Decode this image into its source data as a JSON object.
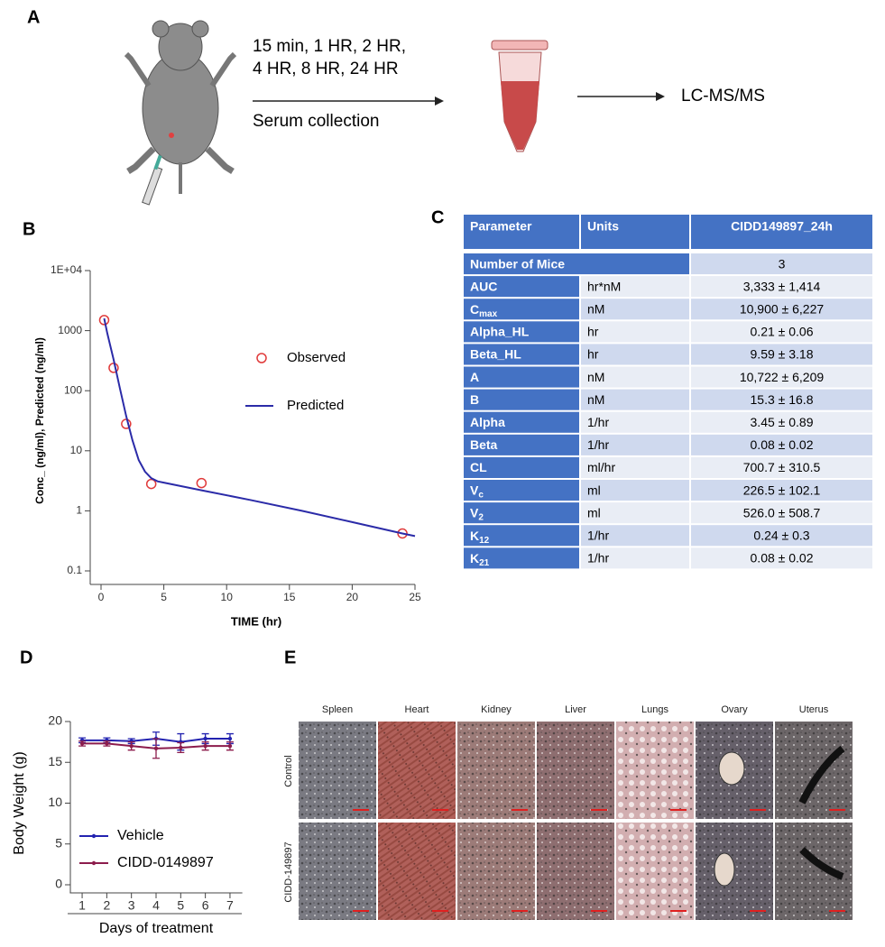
{
  "labels": {
    "a": "A",
    "b": "B",
    "c": "C",
    "d": "D",
    "e": "E"
  },
  "panel_a": {
    "timepoints": [
      "15 min, 1 HR, 2 HR,",
      "4 HR, 8 HR, 24 HR"
    ],
    "step": "Serum collection",
    "analysis": "LC-MS/MS"
  },
  "chart_data": [
    {
      "type": "line",
      "log_y": true,
      "x_label": "TIME (hr)",
      "y_label": "Conc_ (ng/ml), Predicted (ng/ml)",
      "xlim": [
        0,
        25
      ],
      "xticks": [
        0,
        5,
        10,
        15,
        20,
        25
      ],
      "ylim": [
        0.1,
        10000
      ],
      "yticks": [
        0.1,
        1,
        10,
        100,
        1000,
        {
          "value": 10000,
          "label": "1E+04"
        }
      ],
      "series": [
        {
          "name": "Observed",
          "style": "scatter",
          "color": "#e03a3a",
          "x": [
            0.25,
            1,
            2,
            4,
            8,
            24
          ],
          "values": [
            1500,
            240,
            28,
            2.8,
            2.9,
            0.42
          ]
        },
        {
          "name": "Predicted",
          "style": "line",
          "color": "#2b2ba8",
          "x": [
            0.25,
            0.5,
            1,
            1.5,
            2,
            2.5,
            3,
            3.5,
            4,
            4.5,
            5,
            8,
            12,
            16,
            20,
            24,
            25
          ],
          "values": [
            1600,
            900,
            330,
            110,
            38,
            15,
            7,
            4.5,
            3.5,
            3.1,
            2.95,
            2.2,
            1.5,
            1.0,
            0.65,
            0.42,
            0.38
          ]
        }
      ]
    },
    {
      "type": "line",
      "x_label": "Days of treatment",
      "y_label": "Body Weight (g)",
      "x": [
        1,
        2,
        3,
        4,
        5,
        6,
        7
      ],
      "xlim": [
        0.5,
        7.5
      ],
      "xticks": [
        1,
        2,
        3,
        4,
        5,
        6,
        7
      ],
      "ylim": [
        0,
        20
      ],
      "yticks": [
        0,
        5,
        10,
        15,
        20
      ],
      "series": [
        {
          "name": "Vehicle",
          "color": "#2323b0",
          "values": [
            17.7,
            17.7,
            17.6,
            17.9,
            17.5,
            17.9,
            17.9
          ],
          "errors": [
            0.3,
            0.3,
            0.3,
            0.8,
            1.0,
            0.6,
            0.6
          ]
        },
        {
          "name": "CIDD-0149897",
          "color": "#8c1c4c",
          "values": [
            17.3,
            17.3,
            17.0,
            16.7,
            16.8,
            17.0,
            17.0
          ],
          "errors": [
            0.3,
            0.3,
            0.5,
            1.2,
            0.6,
            0.5,
            0.5
          ]
        }
      ]
    }
  ],
  "table": {
    "header": [
      "Parameter",
      "Units",
      "CIDD149897_24h"
    ],
    "rows": [
      [
        "Number of Mice",
        "3"
      ],
      [
        "AUC",
        "hr*nM",
        "3,333 ± 1,414"
      ],
      [
        {
          "text": "C",
          "sub": "max"
        },
        "nM",
        "10,900 ± 6,227"
      ],
      [
        "Alpha_HL",
        "hr",
        "0.21 ± 0.06"
      ],
      [
        "Beta_HL",
        "hr",
        "9.59 ± 3.18"
      ],
      [
        "A",
        "nM",
        "10,722 ± 6,209"
      ],
      [
        "B",
        "nM",
        "15.3 ± 16.8"
      ],
      [
        "Alpha",
        "1/hr",
        "3.45 ± 0.89"
      ],
      [
        "Beta",
        "1/hr",
        "0.08 ± 0.02"
      ],
      [
        "CL",
        "ml/hr",
        "700.7 ± 310.5"
      ],
      [
        {
          "text": "V",
          "sub": "c"
        },
        "ml",
        "226.5 ± 102.1"
      ],
      [
        {
          "text": "V",
          "sub": "2"
        },
        "ml",
        "526.0 ± 508.7"
      ],
      [
        {
          "text": "K",
          "sub": "12"
        },
        "1/hr",
        "0.24 ± 0.3"
      ],
      [
        {
          "text": "K",
          "sub": "21"
        },
        "1/hr",
        "0.08 ± 0.02"
      ]
    ]
  },
  "panel_e": {
    "columns": [
      "Spleen",
      "Heart",
      "Kidney",
      "Liver",
      "Lungs",
      "Ovary",
      "Uterus"
    ],
    "rows": [
      "Control",
      "CIDD-149897"
    ]
  }
}
